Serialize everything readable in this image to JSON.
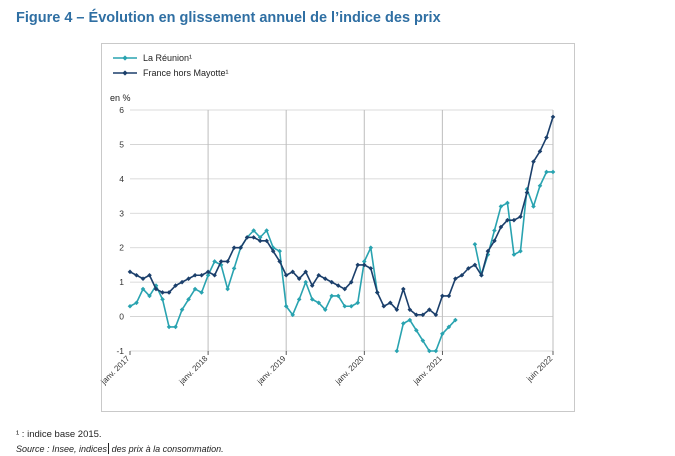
{
  "figure": {
    "title": "Figure 4 – Évolution en glissement annuel de l’indice des prix",
    "footnote": "¹ : indice base 2015.",
    "source_prefix": "Source : Insee, indices",
    "source_suffix": " des prix à la consommation."
  },
  "chart_data": {
    "type": "line",
    "title": "",
    "xlabel": "",
    "ylabel": "en %",
    "ylim": [
      -1,
      6
    ],
    "yticks": [
      -1,
      0,
      1,
      2,
      3,
      4,
      5,
      6
    ],
    "ytick_labels": [
      "-1",
      "0",
      "1",
      "2",
      "3",
      "4",
      "5",
      "6"
    ],
    "x_start": "janv. 2017",
    "x_end": "juin 2022",
    "n_points": 66,
    "xtick_indices": [
      0,
      12,
      24,
      36,
      48,
      65
    ],
    "xtick_labels": [
      "janv. 2017",
      "janv. 2018",
      "janv. 2019",
      "janv. 2020",
      "janv. 2021",
      "juin 2022"
    ],
    "gridlines_at_indices": [
      12,
      24,
      36,
      48,
      65
    ],
    "grid": true,
    "legend_position": "top-left",
    "series": [
      {
        "name": "La Réunion¹",
        "color": "#29a3b0",
        "marker": "diamond",
        "values": [
          0.3,
          0.4,
          0.8,
          0.6,
          0.9,
          0.5,
          -0.3,
          -0.3,
          0.2,
          0.5,
          0.8,
          0.7,
          1.2,
          1.6,
          1.5,
          0.8,
          1.4,
          2.0,
          2.3,
          2.5,
          2.3,
          2.5,
          2.0,
          1.9,
          0.3,
          0.05,
          0.5,
          1.0,
          0.5,
          0.4,
          0.2,
          0.6,
          0.6,
          0.3,
          0.3,
          0.4,
          1.6,
          2.0,
          0.7,
          null,
          null,
          -1.0,
          -0.2,
          -0.1,
          -0.4,
          -0.7,
          -1.0,
          -1.0,
          -0.5,
          -0.3,
          -0.1,
          null,
          null,
          2.1,
          1.2,
          1.8,
          2.5,
          3.2,
          3.3,
          1.8,
          1.9,
          3.7,
          3.2,
          3.8,
          4.2,
          4.2
        ]
      },
      {
        "name": "France hors Mayotte¹",
        "color": "#1b3f6b",
        "marker": "diamond",
        "values": [
          1.3,
          1.2,
          1.1,
          1.2,
          0.8,
          0.7,
          0.7,
          0.9,
          1.0,
          1.1,
          1.2,
          1.2,
          1.3,
          1.2,
          1.6,
          1.6,
          2.0,
          2.0,
          2.3,
          2.3,
          2.2,
          2.2,
          1.9,
          1.6,
          1.2,
          1.3,
          1.1,
          1.3,
          0.9,
          1.2,
          1.1,
          1.0,
          0.9,
          0.8,
          1.0,
          1.5,
          1.5,
          1.4,
          0.7,
          0.3,
          0.4,
          0.2,
          0.8,
          0.2,
          0.05,
          0.05,
          0.2,
          0.05,
          0.6,
          0.6,
          1.1,
          1.2,
          1.4,
          1.5,
          1.2,
          1.9,
          2.2,
          2.6,
          2.8,
          2.8,
          2.9,
          3.6,
          4.5,
          4.8,
          5.2,
          5.8
        ]
      }
    ]
  }
}
